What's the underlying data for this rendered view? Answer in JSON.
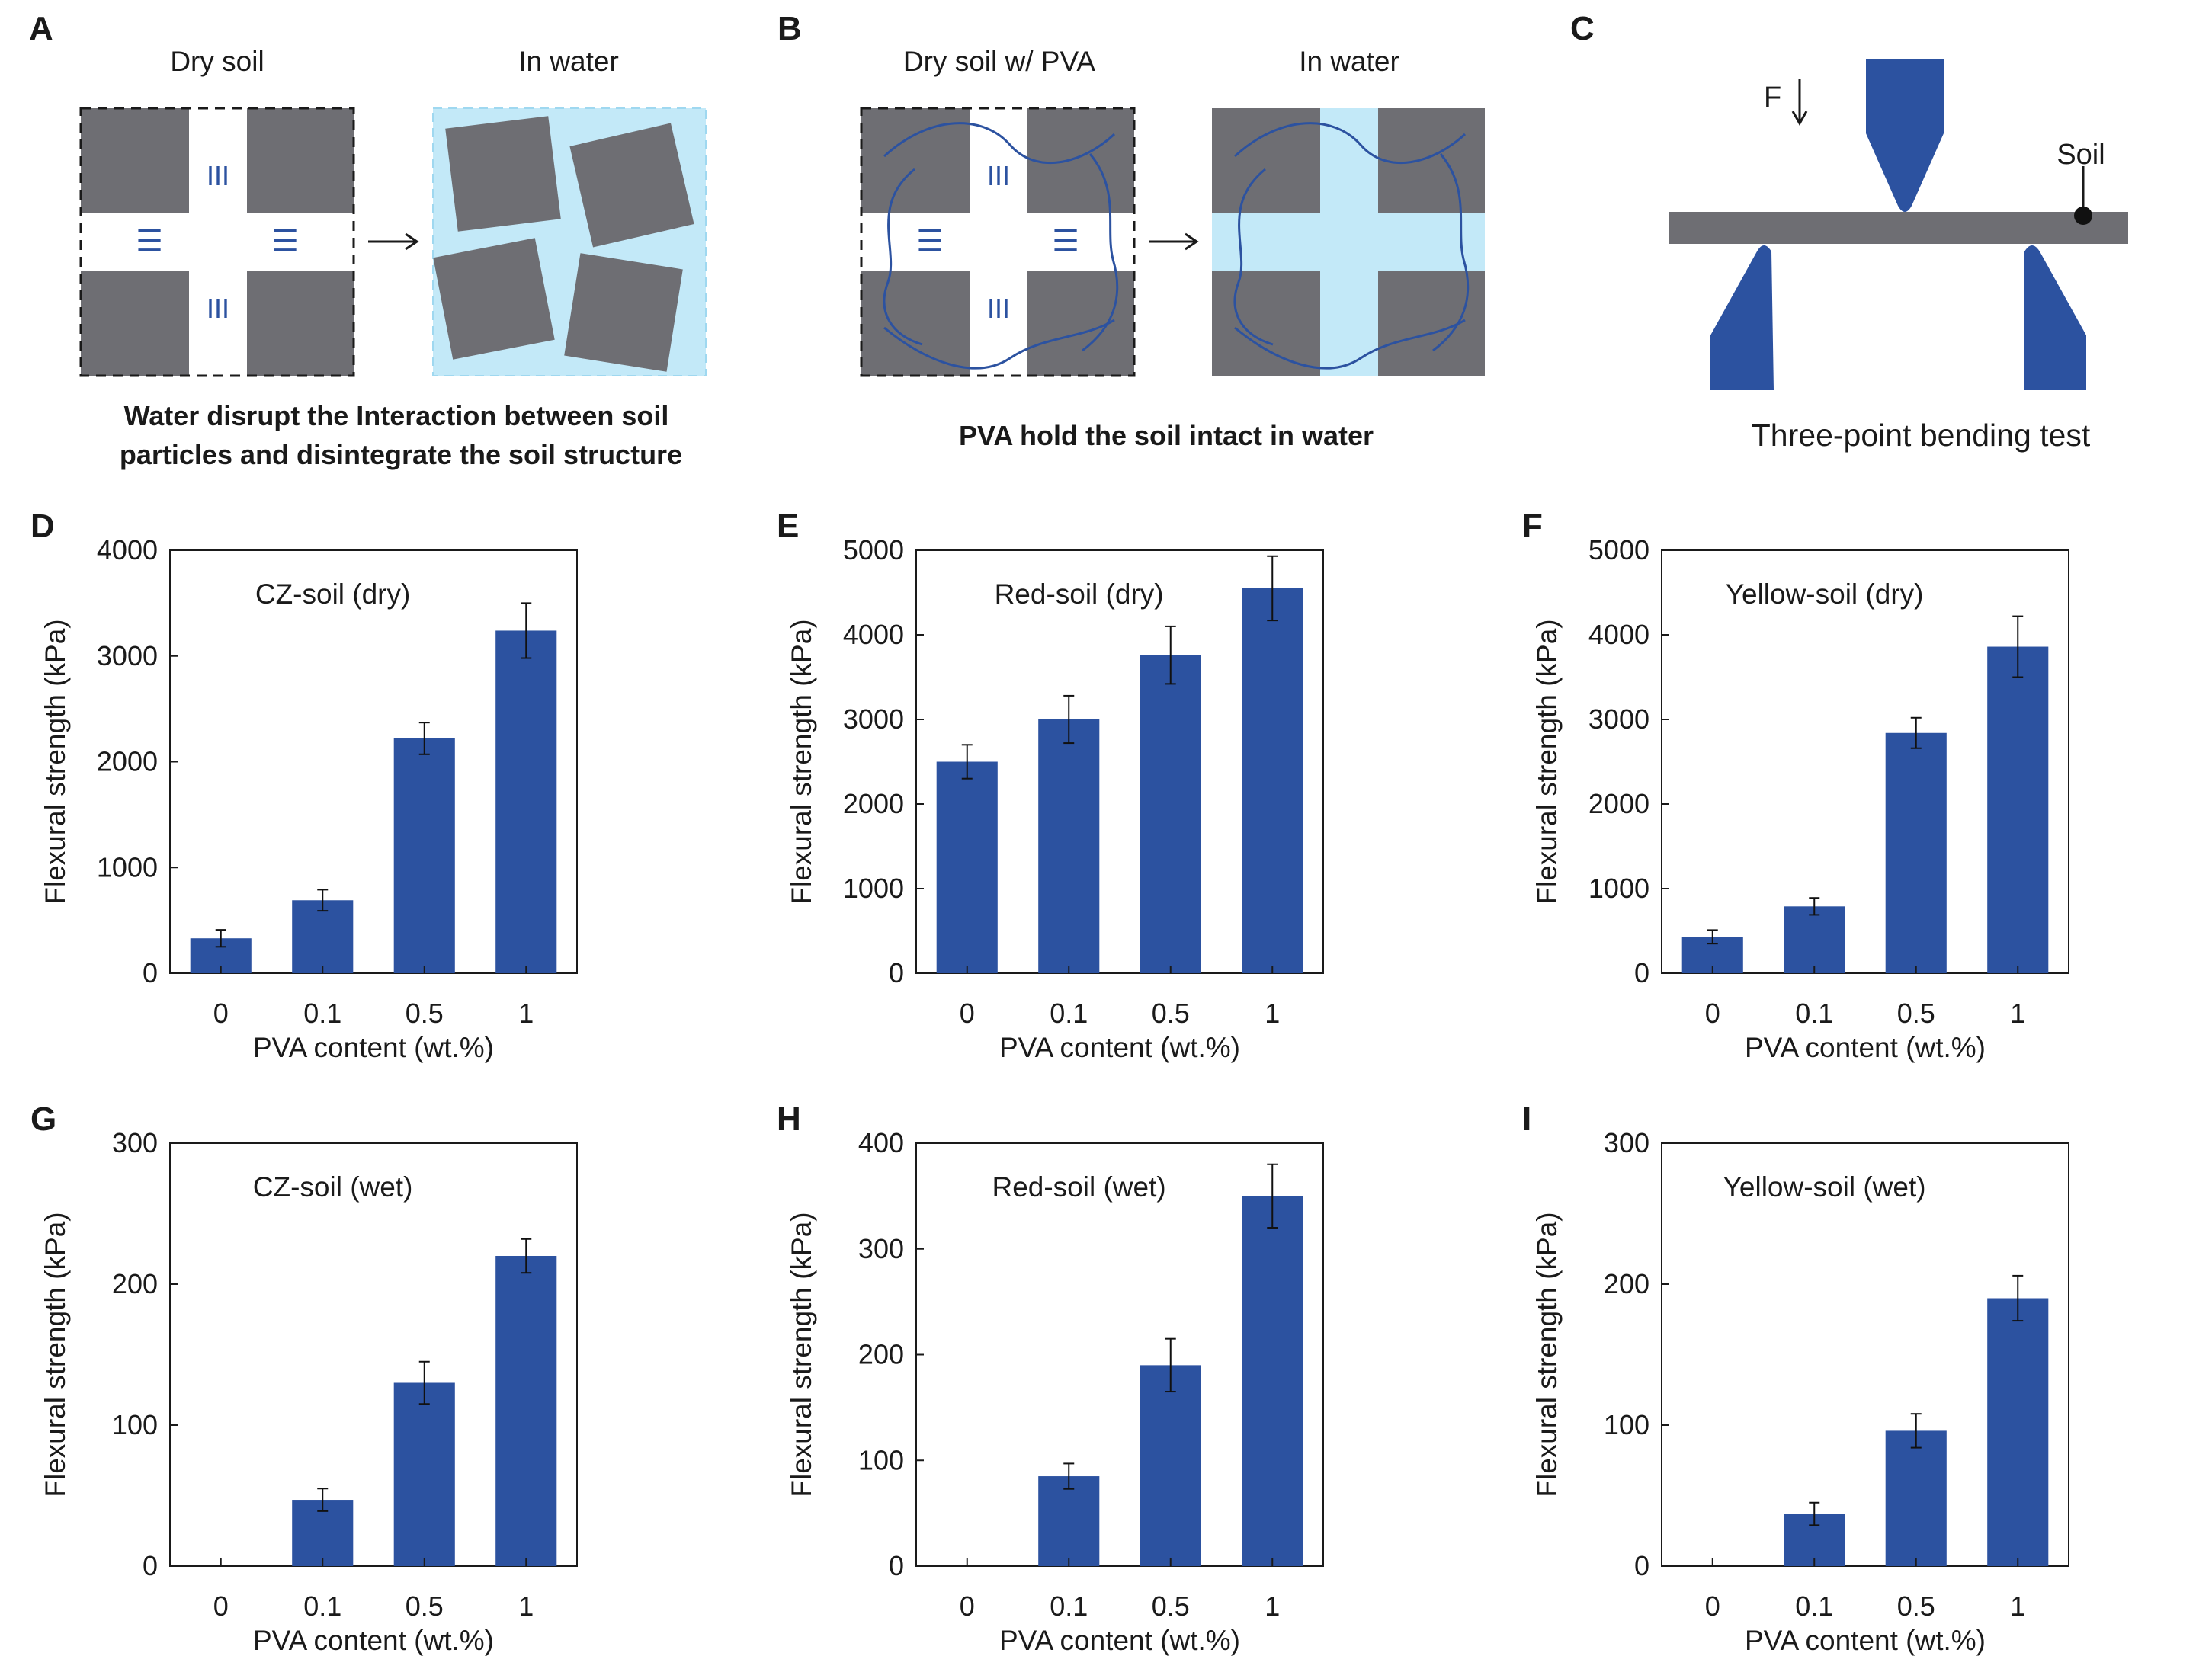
{
  "colors": {
    "bar": "#2C52A0",
    "soil": "#6E6E73",
    "water": "#C3E9F8",
    "fiber": "#2C52A0",
    "tool": "#2C52A0"
  },
  "panels": {
    "A": {
      "letter": "A",
      "left_title": "Dry soil",
      "right_title": "In water",
      "caption_line1": "Water disrupt the Interaction between soil",
      "caption_line2": "particles and disintegrate the soil structure",
      "h_mark": "III",
      "v_mark": "☰"
    },
    "B": {
      "letter": "B",
      "left_title": "Dry soil w/ PVA",
      "right_title": "In water",
      "caption": "PVA hold the soil  intact in water",
      "h_mark": "III",
      "v_mark": "☰"
    },
    "C": {
      "letter": "C",
      "force_label": "F",
      "soil_label": "Soil",
      "caption": "Three-point bending test"
    }
  },
  "chart_data": [
    {
      "letter": "D",
      "type": "bar",
      "title": "CZ-soil (dry)",
      "xlabel": "PVA content (wt.%)",
      "ylabel": "Flexural strength (kPa)",
      "categories": [
        "0",
        "0.1",
        "0.5",
        "1"
      ],
      "values": [
        330,
        690,
        2220,
        3240
      ],
      "errors": [
        80,
        100,
        150,
        260
      ],
      "ylim": [
        0,
        4000
      ],
      "yticks": [
        "0",
        "1000",
        "2000",
        "3000",
        "4000"
      ]
    },
    {
      "letter": "E",
      "type": "bar",
      "title": "Red-soil (dry)",
      "xlabel": "PVA content (wt.%)",
      "ylabel": "Flexural strength (kPa)",
      "categories": [
        "0",
        "0.1",
        "0.5",
        "1"
      ],
      "values": [
        2500,
        3000,
        3760,
        4550
      ],
      "errors": [
        200,
        280,
        340,
        380
      ],
      "ylim": [
        0,
        5000
      ],
      "yticks": [
        "0",
        "1000",
        "2000",
        "3000",
        "4000",
        "5000"
      ]
    },
    {
      "letter": "F",
      "type": "bar",
      "title": "Yellow-soil (dry)",
      "xlabel": "PVA content (wt.%)",
      "ylabel": "Flexural strength (kPa)",
      "categories": [
        "0",
        "0.1",
        "0.5",
        "1"
      ],
      "values": [
        430,
        790,
        2840,
        3860
      ],
      "errors": [
        80,
        100,
        180,
        360
      ],
      "ylim": [
        0,
        5000
      ],
      "yticks": [
        "0",
        "1000",
        "2000",
        "3000",
        "4000",
        "5000"
      ]
    },
    {
      "letter": "G",
      "type": "bar",
      "title": "CZ-soil (wet)",
      "xlabel": "PVA content (wt.%)",
      "ylabel": "Flexural strength (kPa)",
      "categories": [
        "0",
        "0.1",
        "0.5",
        "1"
      ],
      "values": [
        0,
        47,
        130,
        220
      ],
      "errors": [
        0,
        8,
        15,
        12
      ],
      "ylim": [
        0,
        300
      ],
      "yticks": [
        "0",
        "100",
        "200",
        "300"
      ]
    },
    {
      "letter": "H",
      "type": "bar",
      "title": "Red-soil (wet)",
      "xlabel": "PVA content (wt.%)",
      "ylabel": "Flexural strength (kPa)",
      "categories": [
        "0",
        "0.1",
        "0.5",
        "1"
      ],
      "values": [
        0,
        85,
        190,
        350
      ],
      "errors": [
        0,
        12,
        25,
        30
      ],
      "ylim": [
        0,
        400
      ],
      "yticks": [
        "0",
        "100",
        "200",
        "300",
        "400"
      ]
    },
    {
      "letter": "I",
      "type": "bar",
      "title": "Yellow-soil (wet)",
      "xlabel": "PVA content (wt.%)",
      "ylabel": "Flexural strength (kPa)",
      "categories": [
        "0",
        "0.1",
        "0.5",
        "1"
      ],
      "values": [
        0,
        37,
        96,
        190
      ],
      "errors": [
        0,
        8,
        12,
        16
      ],
      "ylim": [
        0,
        300
      ],
      "yticks": [
        "0",
        "100",
        "200",
        "300"
      ]
    }
  ]
}
